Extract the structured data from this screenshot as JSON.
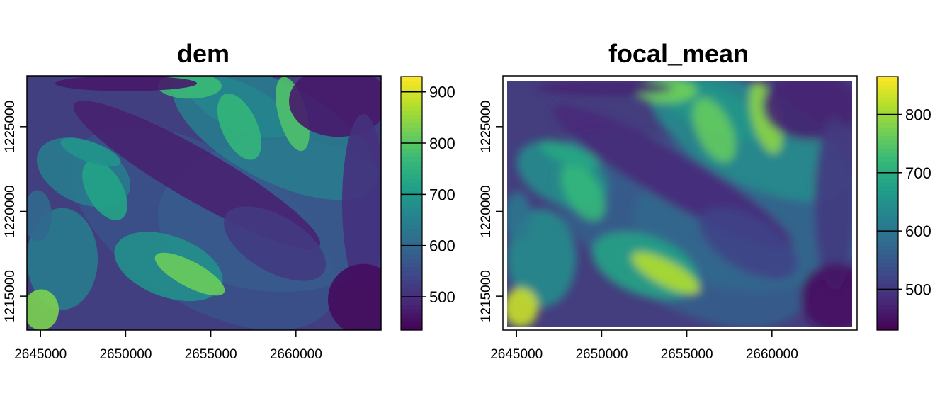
{
  "chart_data": [
    {
      "type": "heatmap",
      "title": "dem",
      "colormap": "viridis",
      "xlim": [
        2644200,
        2665000
      ],
      "ylim": [
        1213000,
        1228000
      ],
      "x_ticks": [
        2645000,
        2650000,
        2655000,
        2660000
      ],
      "x_tick_labels": [
        "2645000",
        "2650000",
        "2655000",
        "2660000"
      ],
      "y_ticks": [
        1215000,
        1220000,
        1225000
      ],
      "y_tick_labels": [
        "1215000",
        "1220000",
        "1225000"
      ],
      "value_range": [
        435,
        930
      ],
      "legend_ticks": [
        500,
        600,
        700,
        800,
        900
      ],
      "legend_tick_labels": [
        "500",
        "600",
        "700",
        "800",
        "900"
      ],
      "legend_position": "right",
      "smoothed": false,
      "has_na_border": false
    },
    {
      "type": "heatmap",
      "title": "focal_mean",
      "colormap": "viridis",
      "xlim": [
        2644200,
        2665000
      ],
      "ylim": [
        1213000,
        1228000
      ],
      "x_ticks": [
        2645000,
        2650000,
        2655000,
        2660000
      ],
      "x_tick_labels": [
        "2645000",
        "2650000",
        "2655000",
        "2660000"
      ],
      "y_ticks": [
        1215000,
        1220000,
        1225000
      ],
      "y_tick_labels": [
        "1215000",
        "1220000",
        "1225000"
      ],
      "value_range": [
        430,
        865
      ],
      "legend_ticks": [
        500,
        600,
        700,
        800
      ],
      "legend_tick_labels": [
        "500",
        "600",
        "700",
        "800"
      ],
      "legend_position": "right",
      "smoothed": true,
      "has_na_border": true
    }
  ]
}
